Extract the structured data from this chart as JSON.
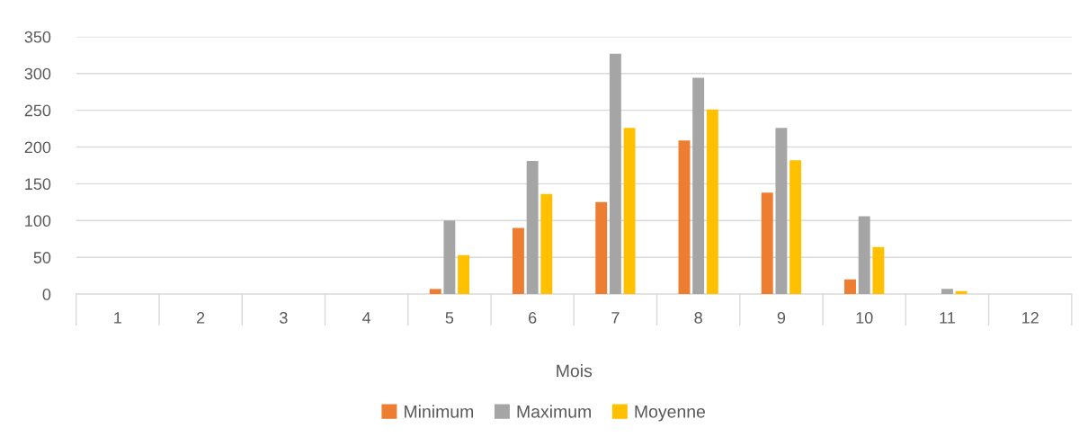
{
  "chart_data": {
    "type": "bar",
    "xlabel": "Mois",
    "categories": [
      "1",
      "2",
      "3",
      "4",
      "5",
      "6",
      "7",
      "8",
      "9",
      "10",
      "11",
      "12"
    ],
    "series": [
      {
        "name": "Minimum",
        "color": "#ed7d31",
        "values": [
          0,
          0,
          0,
          0,
          7,
          90,
          125,
          209,
          138,
          20,
          0,
          0
        ]
      },
      {
        "name": "Maximum",
        "color": "#a5a5a5",
        "values": [
          0,
          0,
          0,
          0,
          100,
          181,
          327,
          294,
          226,
          106,
          7,
          0
        ]
      },
      {
        "name": "Moyenne",
        "color": "#ffc000",
        "values": [
          0,
          0,
          0,
          0,
          53,
          136,
          226,
          251,
          182,
          64,
          4,
          0
        ]
      }
    ],
    "ylim": [
      0,
      350
    ],
    "yticks": [
      0,
      50,
      100,
      150,
      200,
      250,
      300,
      350
    ],
    "grid": "y",
    "legend": "bottom"
  }
}
